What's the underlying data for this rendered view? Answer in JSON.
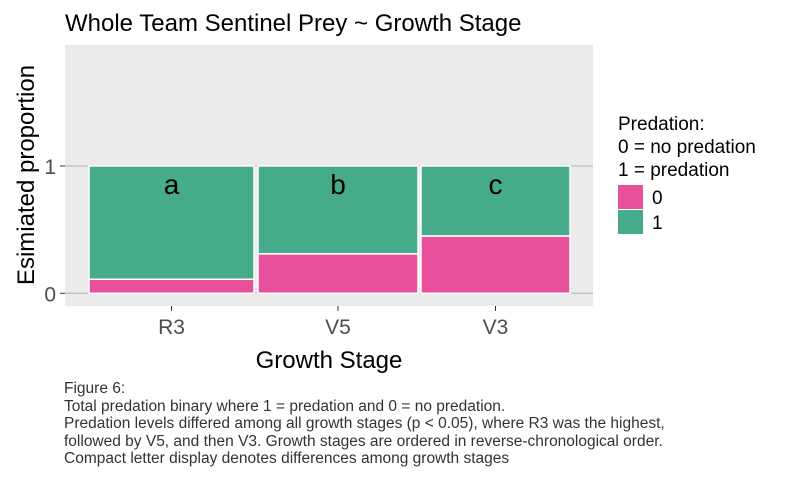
{
  "chart_data": {
    "type": "bar",
    "stacked": "proportion",
    "title": "Whole Team Sentinel Prey ~ Growth Stage",
    "xlabel": "Growth Stage",
    "ylabel": "Esimiated proportion",
    "categories": [
      "R3",
      "V5",
      "V3"
    ],
    "letters": [
      "a",
      "b",
      "c"
    ],
    "series": [
      {
        "name": "0",
        "values": [
          0.11,
          0.31,
          0.45
        ]
      },
      {
        "name": "1",
        "values": [
          0.89,
          0.69,
          0.55
        ]
      }
    ],
    "ylim": [
      -0.1,
      1.95
    ],
    "yticks": [
      "0",
      "1"
    ],
    "grid": true,
    "legend": {
      "position": "right",
      "title_lines": [
        "Predation:",
        "0 = no predation",
        "1 = predation"
      ],
      "labels": [
        "0",
        "1"
      ]
    }
  },
  "colors": {
    "series_0": "#E8509C",
    "series_1": "#45AB8A",
    "panel": "#EBEBEB",
    "grid": "#B3B3B3"
  },
  "caption": {
    "lines": [
      "Figure 6:",
      "Total predation binary where 1 = predation and 0 = no predation.",
      "Predation levels differed among all growth stages (p < 0.05), where R3 was the highest,",
      "followed by V5, and then V3. Growth stages are ordered in reverse-chronological order.",
      "Compact letter display denotes differences among growth stages"
    ]
  }
}
